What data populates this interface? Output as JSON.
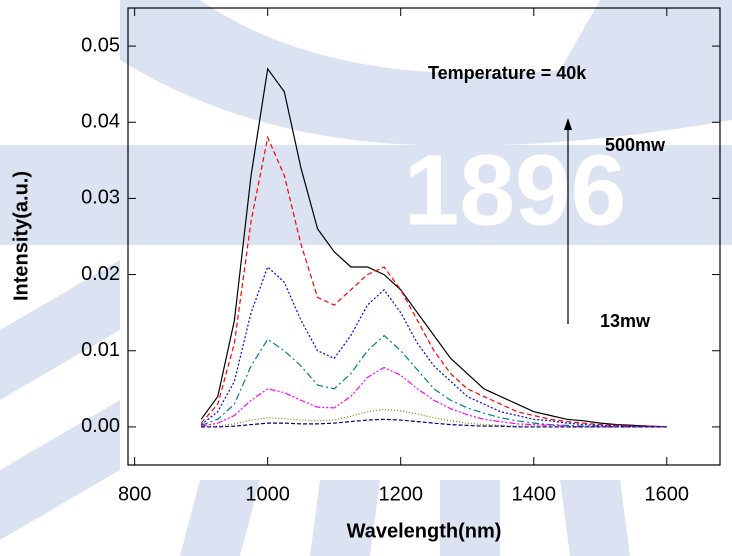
{
  "chart_data": {
    "type": "line",
    "watermark": "1896",
    "xlabel": "Wavelength(nm)",
    "ylabel": "Intensity(a.u.)",
    "annotations": [
      "Temperature = 40k",
      "500mw",
      "13mw"
    ],
    "xlim": [
      790,
      1680
    ],
    "ylim": [
      -0.005,
      0.055
    ],
    "xticks": [
      800,
      1000,
      1200,
      1400,
      1600
    ],
    "yticks": [
      {
        "value": 0,
        "label": "0.00"
      },
      0.01,
      0.02,
      0.03,
      0.04,
      0.05
    ],
    "x": [
      900,
      925,
      950,
      975,
      1000,
      1025,
      1050,
      1075,
      1100,
      1125,
      1150,
      1175,
      1200,
      1225,
      1250,
      1275,
      1300,
      1325,
      1350,
      1375,
      1400,
      1425,
      1450,
      1475,
      1500,
      1525,
      1550,
      1575,
      1600
    ],
    "series": [
      {
        "color": "#000000",
        "dash": "none",
        "values": [
          0.001,
          0.004,
          0.014,
          0.033,
          0.047,
          0.044,
          0.034,
          0.026,
          0.023,
          0.021,
          0.021,
          0.02,
          0.018,
          0.015,
          0.012,
          0.009,
          0.007,
          0.005,
          0.004,
          0.003,
          0.002,
          0.0015,
          0.001,
          0.0008,
          0.0005,
          0.0003,
          0.0002,
          0.0001,
          0
        ]
      },
      {
        "color": "#ff0000",
        "dash": "5,3",
        "values": [
          0.0005,
          0.003,
          0.011,
          0.027,
          0.038,
          0.033,
          0.024,
          0.017,
          0.016,
          0.018,
          0.02,
          0.021,
          0.018,
          0.014,
          0.01,
          0.007,
          0.005,
          0.004,
          0.003,
          0.002,
          0.0015,
          0.001,
          0.0007,
          0.0005,
          0.0003,
          0.0002,
          0.0001,
          0.0001,
          0
        ]
      },
      {
        "color": "#0000ff",
        "dash": "2,2",
        "values": [
          0.0003,
          0.002,
          0.006,
          0.015,
          0.021,
          0.019,
          0.014,
          0.01,
          0.009,
          0.012,
          0.016,
          0.018,
          0.015,
          0.011,
          0.008,
          0.006,
          0.004,
          0.003,
          0.002,
          0.0015,
          0.001,
          0.0008,
          0.0005,
          0.0003,
          0.0002,
          0.0001,
          0.0001,
          0,
          0
        ]
      },
      {
        "color": "#008080",
        "dash": "7,3,2,3",
        "values": [
          0.0002,
          0.001,
          0.003,
          0.008,
          0.0115,
          0.01,
          0.008,
          0.0055,
          0.005,
          0.007,
          0.01,
          0.012,
          0.01,
          0.0075,
          0.005,
          0.0035,
          0.0025,
          0.0018,
          0.0012,
          0.0008,
          0.0005,
          0.0003,
          0.0002,
          0.0001,
          0.0001,
          0,
          0,
          0,
          0
        ]
      },
      {
        "color": "#ff00ff",
        "dash": "6,2,2,2,2,2",
        "values": [
          0.0001,
          0.0005,
          0.0015,
          0.0035,
          0.005,
          0.0045,
          0.0035,
          0.0026,
          0.0025,
          0.004,
          0.0065,
          0.0078,
          0.0068,
          0.005,
          0.0035,
          0.0024,
          0.0016,
          0.001,
          0.0007,
          0.0004,
          0.0003,
          0.0002,
          0.0001,
          0,
          0,
          0,
          0,
          0,
          0
        ]
      },
      {
        "color": "#808000",
        "dash": "1,2",
        "values": [
          0,
          0.0001,
          0.0004,
          0.0009,
          0.0012,
          0.0011,
          0.0009,
          0.0008,
          0.0009,
          0.0014,
          0.002,
          0.0023,
          0.0021,
          0.0017,
          0.0012,
          0.0008,
          0.0005,
          0.0003,
          0.0002,
          0.0001,
          0.0001,
          0,
          0,
          0,
          0,
          0,
          0,
          0,
          0
        ]
      },
      {
        "color": "#000080",
        "dash": "4,2",
        "values": [
          0,
          0,
          0.0001,
          0.0003,
          0.0005,
          0.0005,
          0.0004,
          0.0004,
          0.0005,
          0.0007,
          0.0009,
          0.001,
          0.0009,
          0.0007,
          0.0005,
          0.0003,
          0.0002,
          0.0001,
          0.0001,
          0,
          0,
          0,
          0,
          0,
          0,
          0,
          0,
          0,
          0
        ]
      }
    ]
  }
}
